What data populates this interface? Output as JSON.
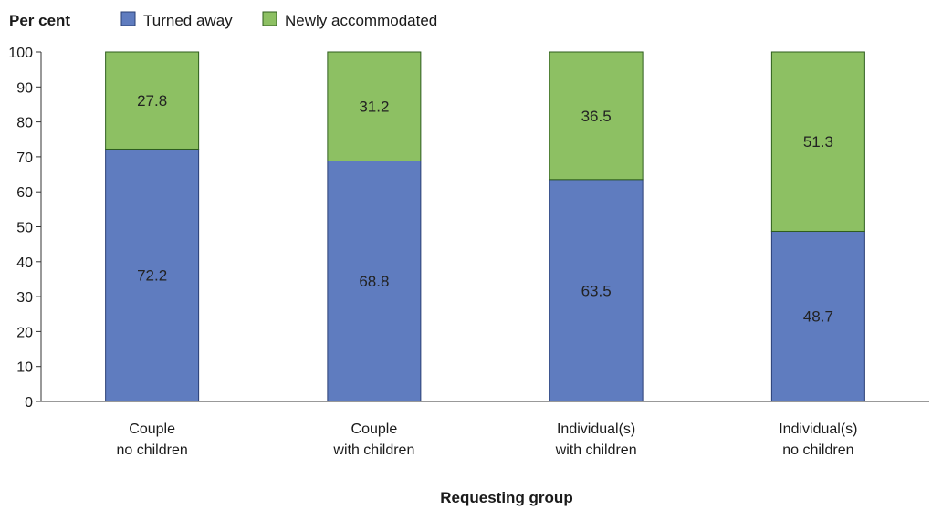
{
  "chart_data": {
    "type": "bar",
    "stacked": true,
    "categories": [
      [
        "Couple",
        "no children"
      ],
      [
        "Couple",
        "with children"
      ],
      [
        "Individual(s)",
        "with children"
      ],
      [
        "Individual(s)",
        "no children"
      ]
    ],
    "series": [
      {
        "name": "Turned away",
        "color": "#5f7cbf",
        "values": [
          72.2,
          68.8,
          63.5,
          48.7
        ],
        "labels": [
          "72.2",
          "68.8",
          "63.5",
          "48.7"
        ]
      },
      {
        "name": "Newly accommodated",
        "color": "#8dc063",
        "values": [
          27.8,
          31.2,
          36.5,
          51.3
        ],
        "labels": [
          "27.8",
          "31.2",
          "36.5",
          "51.3"
        ]
      }
    ],
    "ylabel": "Per cent",
    "xlabel": "Requesting group",
    "ylim": [
      0,
      100
    ],
    "yticks": [
      "0",
      "10",
      "20",
      "30",
      "40",
      "50",
      "60",
      "70",
      "80",
      "90",
      "100"
    ],
    "grid": false,
    "legend_position": "top"
  }
}
